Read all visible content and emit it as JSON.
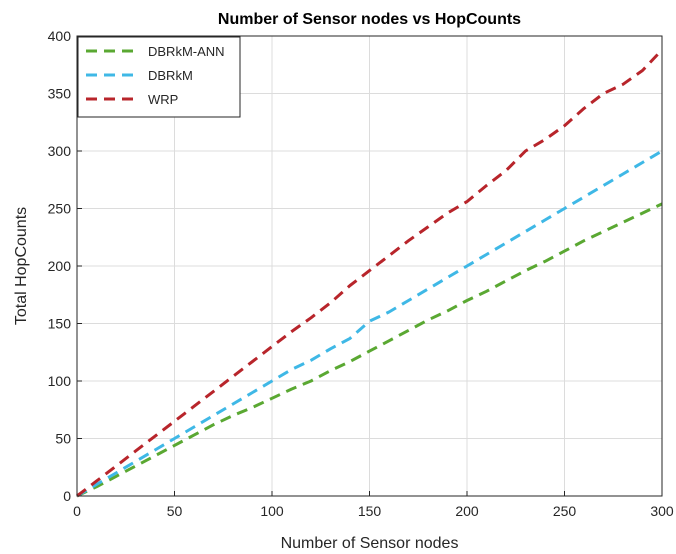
{
  "chart_data": {
    "type": "line",
    "title": "Number of Sensor nodes vs HopCounts",
    "xlabel": "Number of Sensor nodes",
    "ylabel": "Total HopCounts",
    "xlim": [
      0,
      300
    ],
    "ylim": [
      0,
      400
    ],
    "xticks": [
      "0",
      "50",
      "100",
      "150",
      "200",
      "250",
      "300"
    ],
    "yticks": [
      "0",
      "50",
      "100",
      "150",
      "200",
      "250",
      "300",
      "350",
      "400"
    ],
    "grid": true,
    "legend_position": "top-left",
    "x": [
      0,
      10,
      20,
      30,
      40,
      50,
      60,
      70,
      80,
      90,
      100,
      110,
      120,
      130,
      140,
      150,
      160,
      170,
      180,
      190,
      200,
      210,
      220,
      230,
      240,
      250,
      260,
      270,
      280,
      290,
      300
    ],
    "series": [
      {
        "name": "DBRkM-ANN",
        "color": "#5aa832",
        "values": [
          0,
          8,
          17,
          26,
          35,
          44,
          53,
          62,
          70,
          77,
          85,
          93,
          100,
          109,
          117,
          126,
          135,
          144,
          153,
          161,
          170,
          178,
          187,
          196,
          204,
          213,
          222,
          230,
          238,
          246,
          254
        ]
      },
      {
        "name": "DBRkM",
        "color": "#3fb8e6",
        "values": [
          0,
          10,
          20,
          30,
          40,
          50,
          60,
          70,
          80,
          90,
          100,
          110,
          118,
          128,
          137,
          152,
          160,
          170,
          180,
          190,
          200,
          210,
          220,
          230,
          240,
          250,
          260,
          270,
          280,
          290,
          300
        ]
      },
      {
        "name": "WRP",
        "color": "#b8252b",
        "values": [
          0,
          13,
          26,
          39,
          52,
          65,
          78,
          91,
          104,
          117,
          130,
          143,
          155,
          168,
          183,
          196,
          209,
          222,
          234,
          246,
          256,
          270,
          283,
          300,
          310,
          322,
          337,
          350,
          358,
          370,
          388
        ]
      }
    ]
  }
}
